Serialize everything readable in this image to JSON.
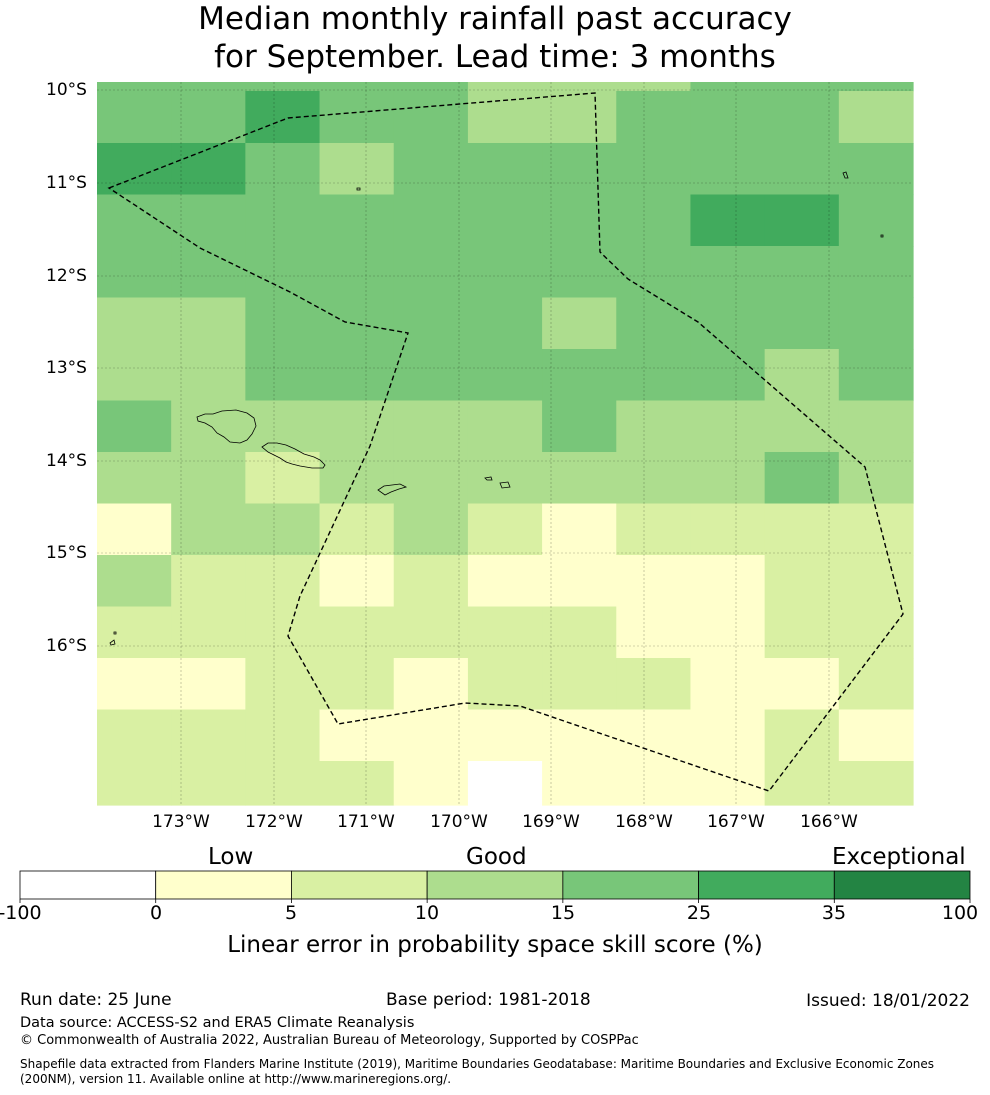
{
  "title": {
    "line1": "Median monthly rainfall past accuracy",
    "line2": "for September. Lead time: 3 months"
  },
  "map": {
    "lat_labels": [
      "10°S",
      "11°S",
      "12°S",
      "13°S",
      "14°S",
      "15°S",
      "16°S"
    ],
    "lon_labels": [
      "173°W",
      "172°W",
      "171°W",
      "170°W",
      "169°W",
      "168°W",
      "167°W",
      "166°W"
    ],
    "grid_columns": 11,
    "grid_rows": 15,
    "cell_categories": [
      [
        4,
        4,
        4,
        4,
        4,
        3,
        3,
        3,
        4,
        4,
        4
      ],
      [
        4,
        4,
        5,
        4,
        4,
        3,
        3,
        4,
        4,
        4,
        3
      ],
      [
        5,
        5,
        4,
        3,
        4,
        4,
        4,
        4,
        4,
        4,
        4
      ],
      [
        4,
        4,
        4,
        4,
        4,
        4,
        4,
        4,
        5,
        5,
        4
      ],
      [
        4,
        4,
        4,
        4,
        4,
        4,
        4,
        4,
        4,
        4,
        4
      ],
      [
        3,
        3,
        4,
        4,
        4,
        4,
        3,
        4,
        4,
        4,
        4
      ],
      [
        3,
        3,
        4,
        4,
        4,
        4,
        4,
        4,
        4,
        3,
        4
      ],
      [
        4,
        3,
        3,
        3,
        3,
        3,
        4,
        3,
        3,
        3,
        3
      ],
      [
        3,
        3,
        2,
        3,
        3,
        3,
        3,
        3,
        3,
        4,
        3
      ],
      [
        1,
        3,
        3,
        2,
        3,
        2,
        1,
        2,
        2,
        2,
        2
      ],
      [
        3,
        2,
        2,
        1,
        2,
        1,
        1,
        1,
        1,
        2,
        2
      ],
      [
        2,
        2,
        2,
        2,
        2,
        2,
        2,
        1,
        1,
        2,
        2
      ],
      [
        1,
        1,
        2,
        2,
        1,
        2,
        2,
        2,
        1,
        1,
        2
      ],
      [
        2,
        2,
        2,
        1,
        1,
        1,
        1,
        1,
        1,
        2,
        1
      ],
      [
        2,
        2,
        2,
        2,
        1,
        0,
        1,
        1,
        1,
        2,
        2
      ]
    ]
  },
  "colorbar": {
    "category_labels": {
      "low": "Low",
      "good": "Good",
      "exceptional": "Exceptional"
    },
    "ticks": [
      "-100",
      "0",
      "5",
      "10",
      "15",
      "25",
      "35",
      "100"
    ],
    "colors": [
      "#ffffff",
      "#ffffcc",
      "#d9f0a3",
      "#addd8e",
      "#78c679",
      "#41ab5d",
      "#238443"
    ],
    "label": "Linear error in probability space skill score (%)"
  },
  "footer": {
    "run_date": "Run date: 25 June",
    "base_period": "Base period: 1981-2018",
    "issued": "Issued: 18/01/2022",
    "data_source": "Data source: ACCESS-S2 and ERA5 Climate Reanalysis",
    "copyright": "© Commonwealth of Australia 2022, Australian Bureau of Meteorology, Supported by COSPPac",
    "shapefile": "Shapefile data extracted from Flanders Marine Institute (2019), Maritime Boundaries Geodatabase: Maritime Boundaries and Exclusive Economic Zones (200NM), version 11. Available online at http://www.marineregions.org/."
  }
}
